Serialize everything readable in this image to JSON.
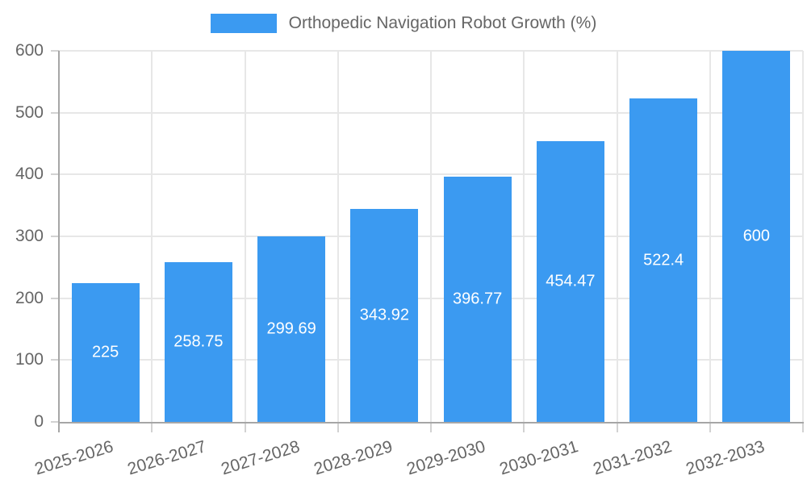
{
  "chart_data": {
    "type": "bar",
    "legend_label": "Orthopedic Navigation Robot Growth (%)",
    "legend_position": "top",
    "categories": [
      "2025-2026",
      "2026-2027",
      "2027-2028",
      "2028-2029",
      "2029-2030",
      "2030-2031",
      "2031-2032",
      "2032-2033"
    ],
    "values": [
      225,
      258.75,
      299.69,
      343.92,
      396.77,
      454.47,
      522.4,
      600
    ],
    "value_labels": [
      "225",
      "258.75",
      "299.69",
      "343.92",
      "396.77",
      "454.47",
      "522.4",
      "600"
    ],
    "y_ticks": [
      0,
      100,
      200,
      300,
      400,
      500,
      600
    ],
    "ylim": [
      0,
      600
    ],
    "xlabel": "",
    "ylabel": "",
    "grid": "both",
    "colors": {
      "bar": "#3b9af1",
      "value_label": "#ffffff",
      "tick_label": "#666666",
      "gridline": "#e7e7e7",
      "tick_mark": "#d2d2d2",
      "axis_line": "#a6a6a6",
      "background": "#ffffff"
    }
  }
}
